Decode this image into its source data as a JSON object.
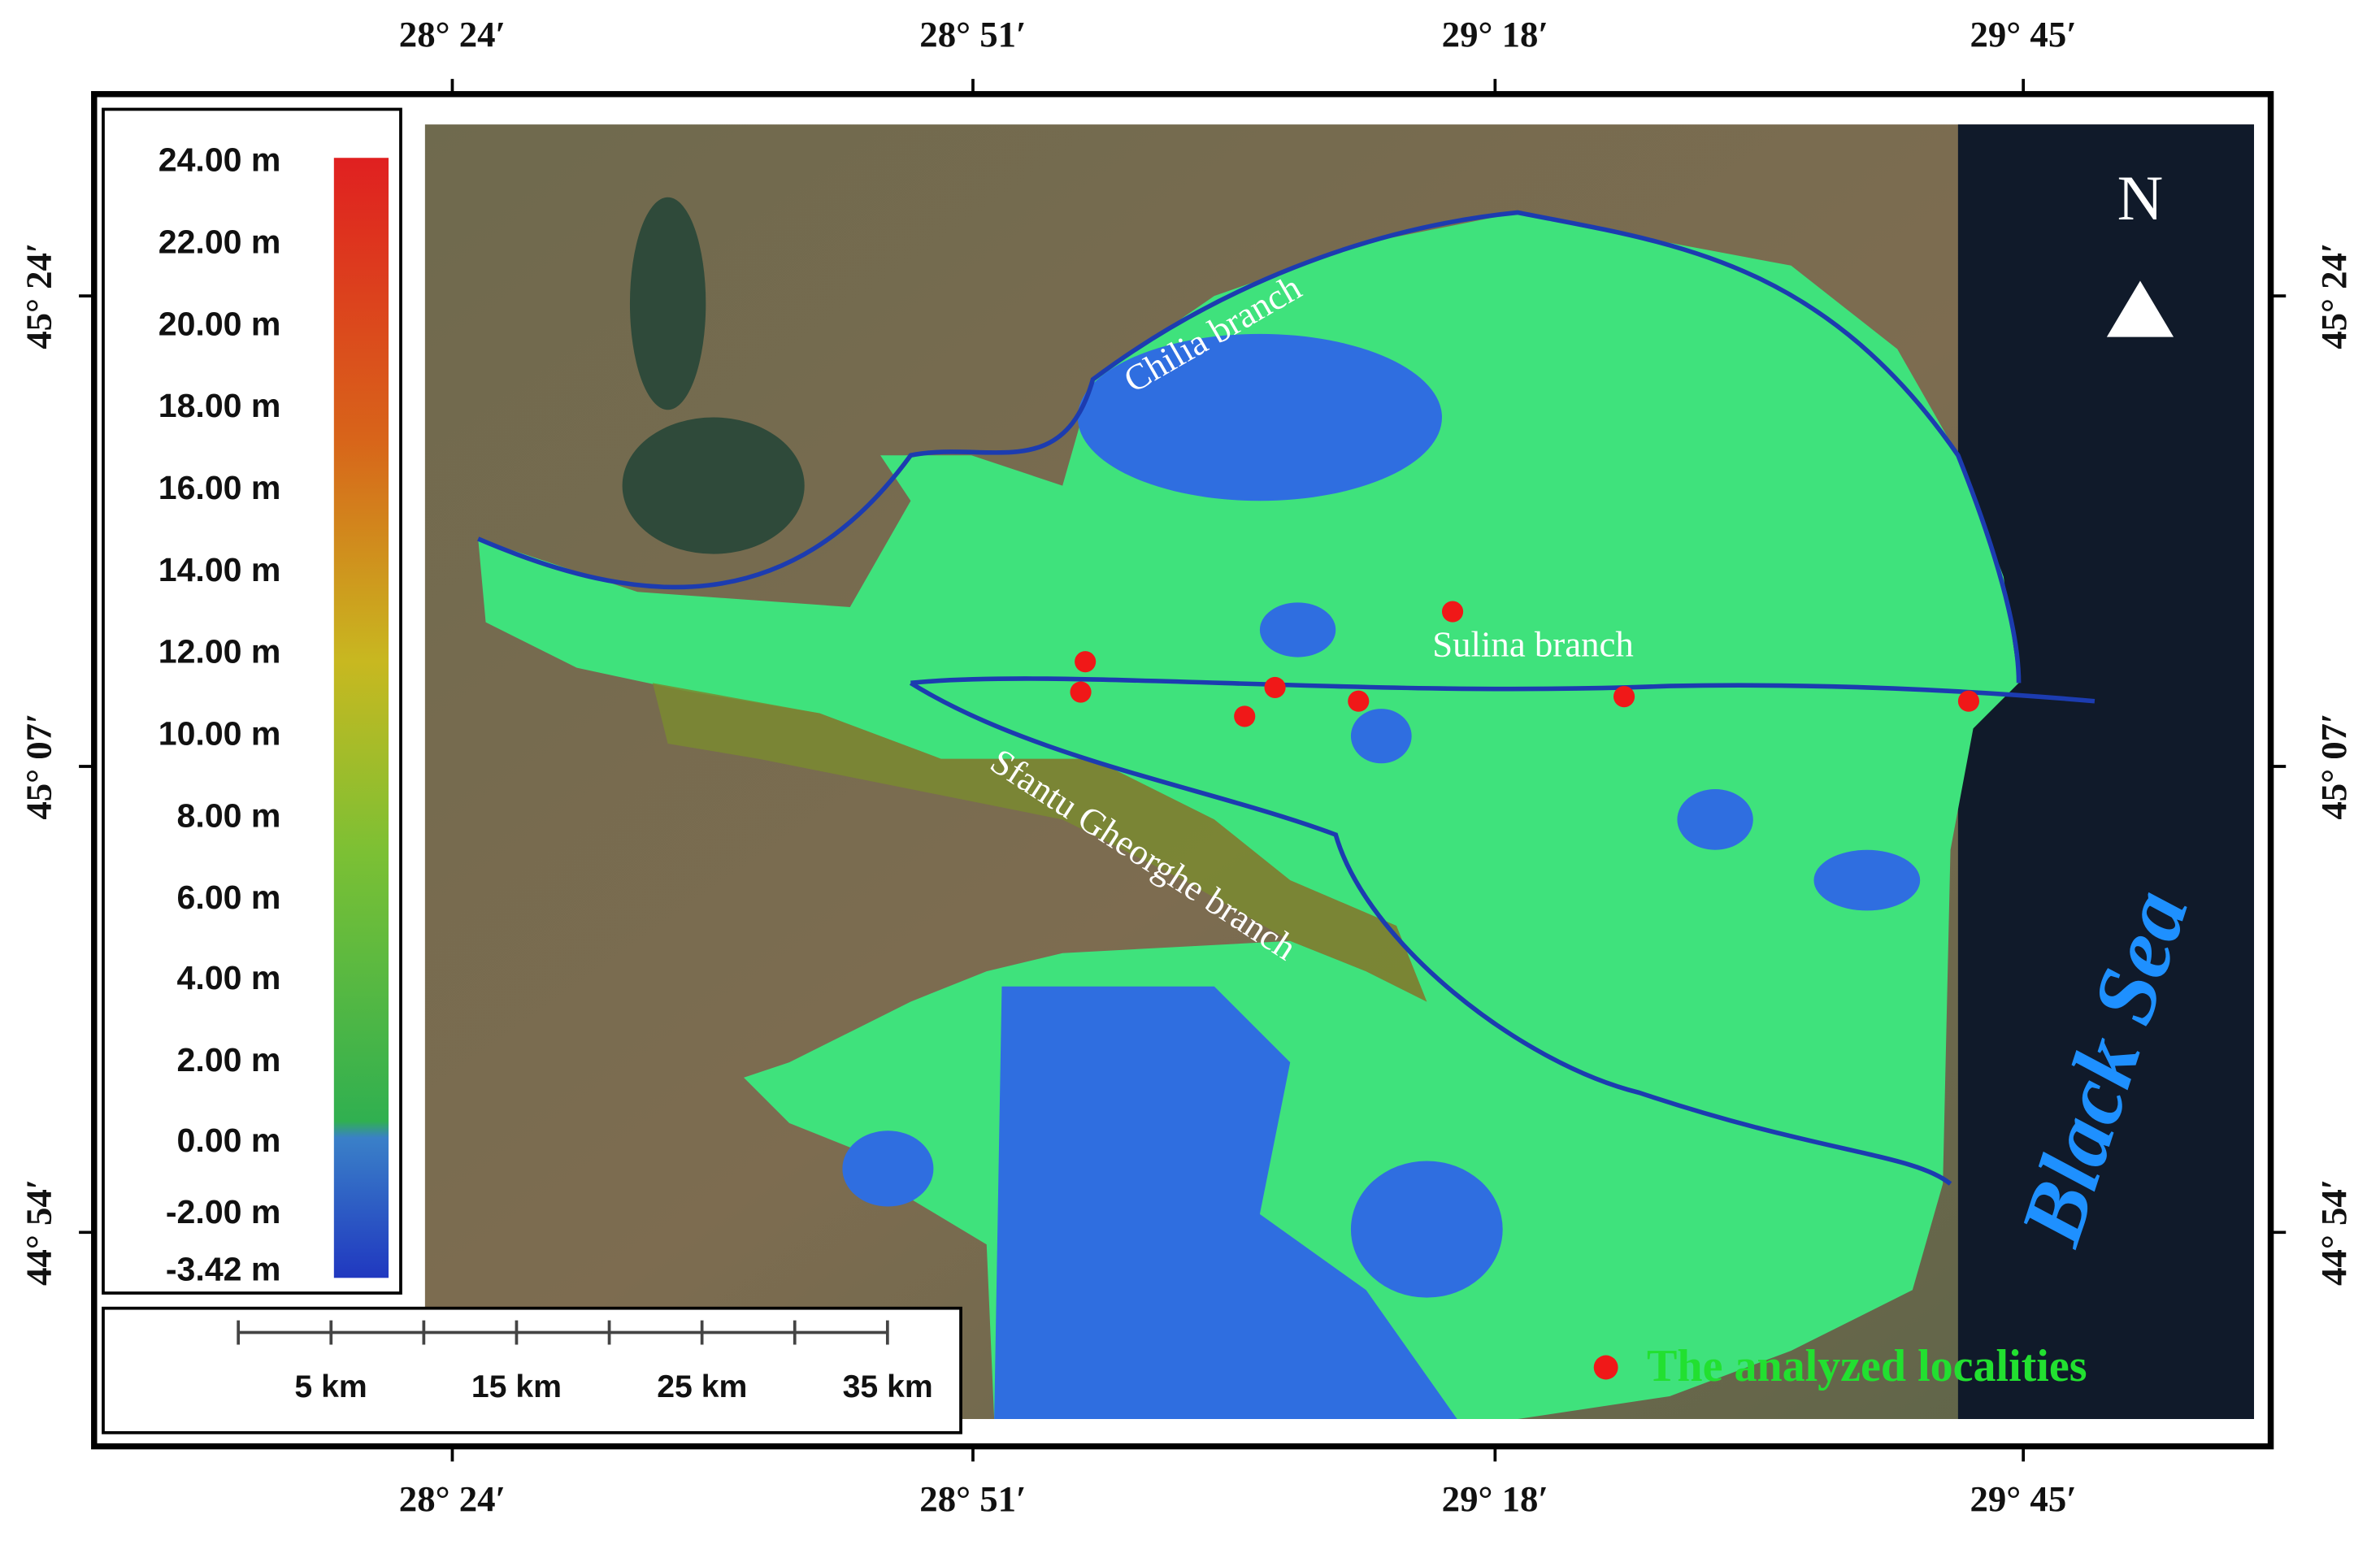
{
  "coordinates": {
    "top": [
      "28° 24′",
      "28° 51′",
      "29° 18′",
      "29° 45′"
    ],
    "bottom": [
      "28° 24′",
      "28° 51′",
      "29° 18′",
      "29° 45′"
    ],
    "left": [
      "45° 24′",
      "45° 07′",
      "44° 54′"
    ],
    "right": [
      "45° 24′",
      "45° 07′",
      "44° 54′"
    ]
  },
  "elevation_legend": {
    "labels": [
      "24.00 m",
      "22.00 m",
      "20.00 m",
      "18.00 m",
      "16.00 m",
      "14.00 m",
      "12.00 m",
      "10.00 m",
      "8.00 m",
      "6.00 m",
      "4.00 m",
      "2.00 m",
      "0.00 m",
      "-2.00 m",
      "-3.42 m"
    ]
  },
  "scale_bar": {
    "labels": [
      "5 km",
      "15 km",
      "25 km",
      "35 km"
    ]
  },
  "places": {
    "chilia": "Chilia branch",
    "sulina": "Sulina branch",
    "sfantu": "Sfantu Gheorghe branch",
    "sea": "Black Sea"
  },
  "north": "N",
  "legend": {
    "localities": "The analyzed localities"
  }
}
